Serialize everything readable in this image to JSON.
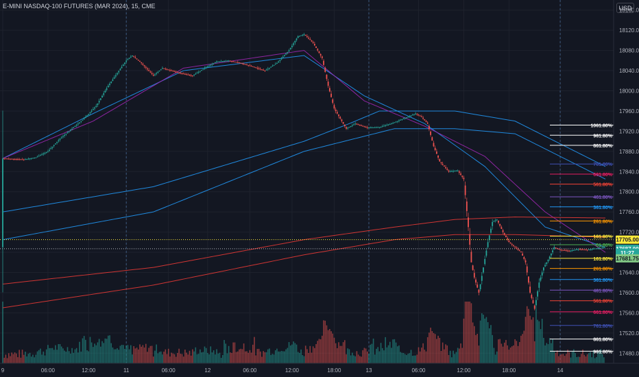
{
  "header": {
    "title": "E-MINI NASDAQ-100 FUTURES (MAR 2024), 15, CME",
    "currency": "USD"
  },
  "colors": {
    "background": "#131722",
    "grid": "#1e222d",
    "up": "#26a69a",
    "down": "#ef5350",
    "ma_blue": "#2196f3",
    "ma_purple": "#9c27b0",
    "ma_red": "#e53935"
  },
  "chart_data": {
    "type": "candlestick",
    "symbol": "E-MINI NASDAQ-100 FUTURES (MAR 2024)",
    "interval": "15",
    "exchange": "CME",
    "ylim": [
      17460,
      18180
    ],
    "y_ticks": [
      "18160.00",
      "18120.00",
      "18080.00",
      "18040.00",
      "18000.00",
      "17960.00",
      "17920.00",
      "17880.00",
      "17840.00",
      "17800.00",
      "17760.00",
      "17720.00",
      "17680.00",
      "17640.00",
      "17600.00",
      "17560.00",
      "17520.00",
      "17480.00"
    ],
    "x_ticks": [
      "9",
      "06:00",
      "12:00",
      "11",
      "06:00",
      "12",
      "06:00",
      "12:00",
      "18:00",
      "13",
      "06:00",
      "12:00",
      "18:00",
      "14"
    ],
    "price_path": [
      [
        0,
        17866
      ],
      [
        14,
        17864
      ],
      [
        22,
        17868
      ],
      [
        30,
        17880
      ],
      [
        38,
        17905
      ],
      [
        46,
        17925
      ],
      [
        54,
        17945
      ],
      [
        62,
        17970
      ],
      [
        70,
        18010
      ],
      [
        76,
        18035
      ],
      [
        82,
        18060
      ],
      [
        86,
        18070
      ],
      [
        92,
        18055
      ],
      [
        100,
        18030
      ],
      [
        106,
        18045
      ],
      [
        112,
        18040
      ],
      [
        118,
        18035
      ],
      [
        126,
        18030
      ],
      [
        134,
        18045
      ],
      [
        142,
        18058
      ],
      [
        150,
        18060
      ],
      [
        158,
        18055
      ],
      [
        166,
        18048
      ],
      [
        174,
        18040
      ],
      [
        182,
        18055
      ],
      [
        190,
        18080
      ],
      [
        196,
        18108
      ],
      [
        200,
        18112
      ],
      [
        206,
        18095
      ],
      [
        212,
        18065
      ],
      [
        216,
        18010
      ],
      [
        220,
        17965
      ],
      [
        224,
        17945
      ],
      [
        228,
        17925
      ],
      [
        234,
        17935
      ],
      [
        242,
        17927
      ],
      [
        250,
        17928
      ],
      [
        258,
        17935
      ],
      [
        266,
        17945
      ],
      [
        274,
        17955
      ],
      [
        278,
        17948
      ],
      [
        282,
        17935
      ],
      [
        286,
        17890
      ],
      [
        290,
        17860
      ],
      [
        296,
        17840
      ],
      [
        302,
        17842
      ],
      [
        306,
        17825
      ],
      [
        309,
        17730
      ],
      [
        311,
        17660
      ],
      [
        313,
        17630
      ],
      [
        316,
        17600
      ],
      [
        319,
        17650
      ],
      [
        322,
        17700
      ],
      [
        325,
        17740
      ],
      [
        328,
        17745
      ],
      [
        332,
        17720
      ],
      [
        336,
        17700
      ],
      [
        340,
        17690
      ],
      [
        344,
        17680
      ],
      [
        347,
        17660
      ],
      [
        350,
        17600
      ],
      [
        353,
        17568
      ],
      [
        356,
        17620
      ],
      [
        359,
        17650
      ],
      [
        362,
        17665
      ],
      [
        366,
        17690
      ],
      [
        370,
        17685
      ],
      [
        376,
        17683
      ],
      [
        382,
        17686
      ],
      [
        388,
        17685
      ],
      [
        392,
        17687
      ],
      [
        395,
        17688
      ],
      [
        400,
        17690
      ]
    ],
    "moving_averages": [
      {
        "color": "blue",
        "values": [
          [
            0,
            17760
          ],
          [
            100,
            17810
          ],
          [
            200,
            17900
          ],
          [
            230,
            17935
          ],
          [
            250,
            17960
          ],
          [
            300,
            17960
          ],
          [
            340,
            17940
          ],
          [
            400,
            17850
          ]
        ]
      },
      {
        "color": "blue",
        "values": [
          [
            0,
            17705
          ],
          [
            100,
            17760
          ],
          [
            200,
            17880
          ],
          [
            260,
            17925
          ],
          [
            300,
            17925
          ],
          [
            340,
            17915
          ],
          [
            400,
            17825
          ]
        ]
      },
      {
        "color": "blue",
        "values": [
          [
            0,
            17866
          ],
          [
            60,
            17955
          ],
          [
            120,
            18040
          ],
          [
            200,
            18070
          ],
          [
            240,
            17990
          ],
          [
            280,
            17935
          ],
          [
            320,
            17850
          ],
          [
            360,
            17730
          ],
          [
            400,
            17690
          ]
        ]
      },
      {
        "color": "purple",
        "values": [
          [
            0,
            17866
          ],
          [
            60,
            17940
          ],
          [
            120,
            18045
          ],
          [
            200,
            18080
          ],
          [
            240,
            17980
          ],
          [
            280,
            17930
          ],
          [
            320,
            17870
          ],
          [
            360,
            17760
          ],
          [
            400,
            17680
          ]
        ]
      },
      {
        "color": "red",
        "values": [
          [
            0,
            17617
          ],
          [
            100,
            17650
          ],
          [
            200,
            17705
          ],
          [
            260,
            17730
          ],
          [
            300,
            17745
          ],
          [
            340,
            17750
          ],
          [
            400,
            17748
          ]
        ]
      },
      {
        "color": "red",
        "values": [
          [
            0,
            17570
          ],
          [
            100,
            17615
          ],
          [
            200,
            17675
          ],
          [
            260,
            17705
          ],
          [
            300,
            17715
          ],
          [
            340,
            17715
          ],
          [
            400,
            17710
          ]
        ]
      }
    ],
    "fib_levels": [
      {
        "label": "1061.80%",
        "price": 17932,
        "color": "#ffffff"
      },
      {
        "label": "961.80%",
        "price": 17912,
        "color": "#ffffff"
      },
      {
        "label": "861.80%",
        "price": 17892,
        "color": "#ffffff"
      },
      {
        "label": "761.80%",
        "price": 17855,
        "color": "#3f51b5"
      },
      {
        "label": "661.80%",
        "price": 17835,
        "color": "#e91e63"
      },
      {
        "label": "561.80%",
        "price": 17815,
        "color": "#f44336"
      },
      {
        "label": "461.80%",
        "price": 17790,
        "color": "#7e57c2"
      },
      {
        "label": "361.80%",
        "price": 17770,
        "color": "#2196f3"
      },
      {
        "label": "261.80%",
        "price": 17742,
        "color": "#ff9800"
      },
      {
        "label": "161.80%",
        "price": 17712,
        "color": "#ffeb3b"
      },
      {
        "label": "61.80%",
        "price": 17695,
        "color": "#4caf50"
      },
      {
        "label": "161.80%",
        "price": 17668,
        "color": "#ffeb3b"
      },
      {
        "label": "261.80%",
        "price": 17648,
        "color": "#ff9800"
      },
      {
        "label": "361.80%",
        "price": 17626,
        "color": "#2196f3"
      },
      {
        "label": "461.80%",
        "price": 17605,
        "color": "#7e57c2"
      },
      {
        "label": "561.80%",
        "price": 17584,
        "color": "#f44336"
      },
      {
        "label": "661.80%",
        "price": 17562,
        "color": "#e91e63"
      },
      {
        "label": "761.80%",
        "price": 17535,
        "color": "#3f51b5"
      },
      {
        "label": "861.80%",
        "price": 17508,
        "color": "#ffffff"
      },
      {
        "label": "961.80%",
        "price": 17484,
        "color": "#ffffff"
      }
    ],
    "price_tags": [
      {
        "text": "17705.00",
        "price": 17705,
        "bg": "#ffeb3b",
        "fg": "#131722"
      },
      {
        "text": "17687.00",
        "price": 17687,
        "bg": "#26a69a",
        "fg": "#ffffff"
      },
      {
        "text": "11:27",
        "price": 17679,
        "bg": "#26a69a",
        "fg": "#ffffff"
      },
      {
        "text": "17681.75",
        "price": 17668,
        "bg": "#81c784",
        "fg": "#131722"
      }
    ],
    "hlines": [
      {
        "price": 17705,
        "color": "#ffeb3b"
      },
      {
        "price": 17687,
        "color": "#b2b5be"
      }
    ],
    "session_lines_x_ticks": [
      "11",
      "13",
      "14"
    ],
    "extra_vlines_x_ticks": [
      "12:00",
      "18:00"
    ],
    "volume_max_fraction": 0.9
  }
}
